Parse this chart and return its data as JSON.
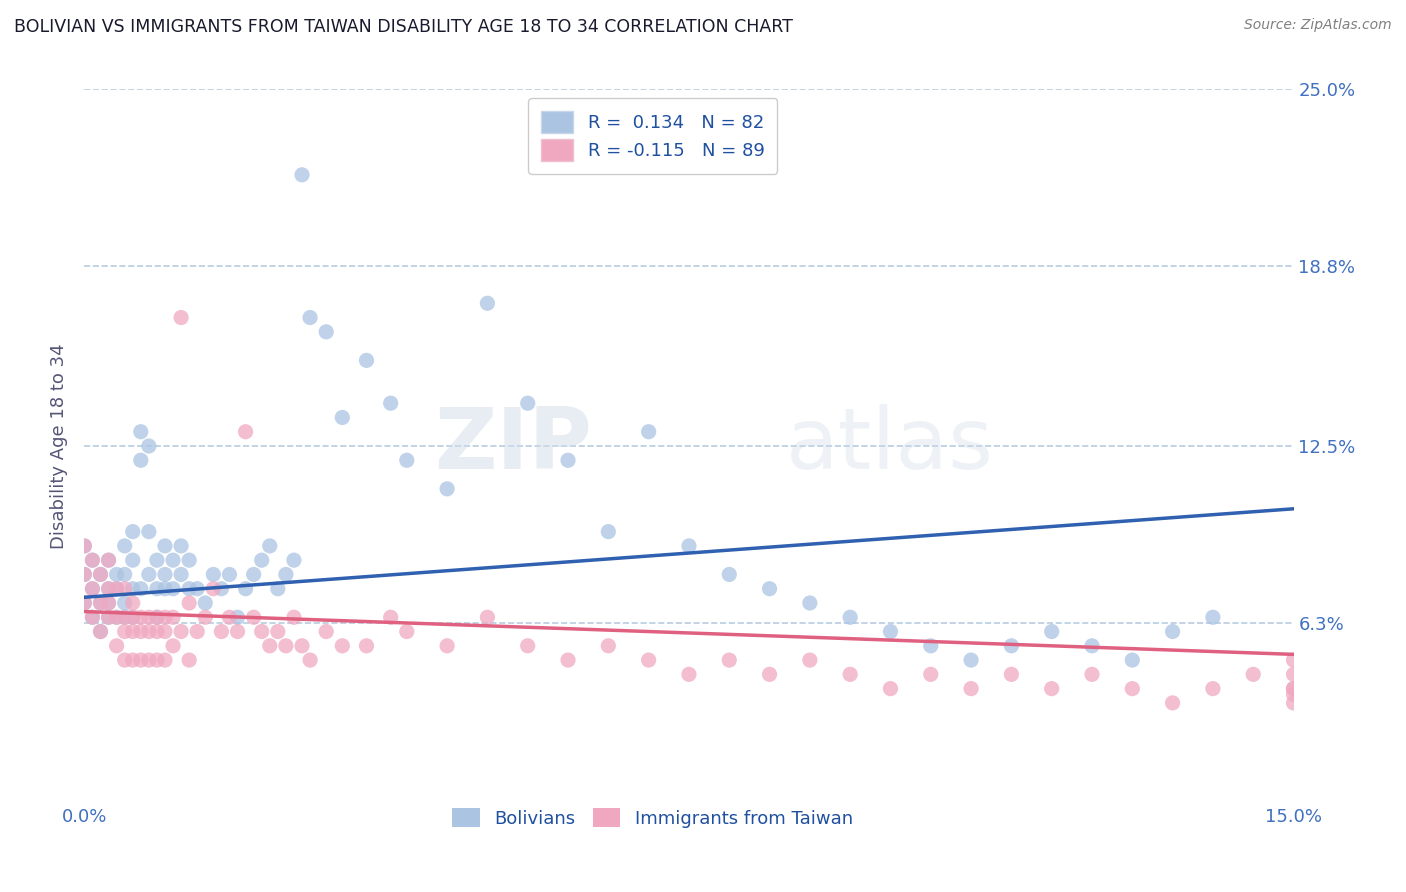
{
  "title": "BOLIVIAN VS IMMIGRANTS FROM TAIWAN DISABILITY AGE 18 TO 34 CORRELATION CHART",
  "source": "Source: ZipAtlas.com",
  "ylabel": "Disability Age 18 to 34",
  "xlim": [
    0.0,
    0.15
  ],
  "ylim": [
    0.0,
    0.25
  ],
  "ytick_vals": [
    0.063,
    0.125,
    0.188,
    0.25
  ],
  "ytick_labels": [
    "6.3%",
    "12.5%",
    "18.8%",
    "25.0%"
  ],
  "xtick_vals": [
    0.0,
    0.15
  ],
  "xtick_labels": [
    "0.0%",
    "15.0%"
  ],
  "color_blue": "#aac4e2",
  "color_pink": "#f0a8c0",
  "line_color_blue": "#3060b0",
  "line_color_pink": "#e06080",
  "watermark": "ZIPatlas",
  "title_color": "#1a1a2e",
  "axis_label_color": "#555577",
  "tick_label_color": "#4070c0",
  "legend_label_color": "#2050a0",
  "background_color": "#ffffff",
  "grid_color": "#b8cce0",
  "R1": 0.134,
  "N1": 82,
  "R2": -0.115,
  "N2": 89,
  "blue_line_start_y": 0.072,
  "blue_line_end_y": 0.103,
  "pink_line_start_y": 0.067,
  "pink_line_end_y": 0.052,
  "bolivians_x": [
    0.0,
    0.0,
    0.0,
    0.001,
    0.001,
    0.001,
    0.002,
    0.002,
    0.002,
    0.003,
    0.003,
    0.003,
    0.003,
    0.004,
    0.004,
    0.004,
    0.005,
    0.005,
    0.005,
    0.005,
    0.006,
    0.006,
    0.006,
    0.006,
    0.007,
    0.007,
    0.007,
    0.008,
    0.008,
    0.008,
    0.009,
    0.009,
    0.009,
    0.01,
    0.01,
    0.01,
    0.011,
    0.011,
    0.012,
    0.012,
    0.013,
    0.013,
    0.014,
    0.015,
    0.016,
    0.017,
    0.018,
    0.019,
    0.02,
    0.021,
    0.022,
    0.023,
    0.024,
    0.025,
    0.026,
    0.027,
    0.028,
    0.03,
    0.032,
    0.035,
    0.038,
    0.04,
    0.045,
    0.05,
    0.055,
    0.06,
    0.065,
    0.07,
    0.075,
    0.08,
    0.085,
    0.09,
    0.095,
    0.1,
    0.105,
    0.11,
    0.115,
    0.12,
    0.125,
    0.13,
    0.135,
    0.14
  ],
  "bolivians_y": [
    0.07,
    0.08,
    0.09,
    0.065,
    0.075,
    0.085,
    0.07,
    0.08,
    0.06,
    0.065,
    0.075,
    0.085,
    0.07,
    0.065,
    0.075,
    0.08,
    0.07,
    0.08,
    0.09,
    0.065,
    0.075,
    0.085,
    0.095,
    0.065,
    0.12,
    0.13,
    0.075,
    0.08,
    0.125,
    0.095,
    0.075,
    0.085,
    0.065,
    0.09,
    0.08,
    0.075,
    0.085,
    0.075,
    0.09,
    0.08,
    0.085,
    0.075,
    0.075,
    0.07,
    0.08,
    0.075,
    0.08,
    0.065,
    0.075,
    0.08,
    0.085,
    0.09,
    0.075,
    0.08,
    0.085,
    0.22,
    0.17,
    0.165,
    0.135,
    0.155,
    0.14,
    0.12,
    0.11,
    0.175,
    0.14,
    0.12,
    0.095,
    0.13,
    0.09,
    0.08,
    0.075,
    0.07,
    0.065,
    0.06,
    0.055,
    0.05,
    0.055,
    0.06,
    0.055,
    0.05,
    0.06,
    0.065
  ],
  "taiwan_x": [
    0.0,
    0.0,
    0.0,
    0.001,
    0.001,
    0.001,
    0.002,
    0.002,
    0.002,
    0.003,
    0.003,
    0.003,
    0.003,
    0.004,
    0.004,
    0.004,
    0.005,
    0.005,
    0.005,
    0.005,
    0.006,
    0.006,
    0.006,
    0.006,
    0.007,
    0.007,
    0.007,
    0.008,
    0.008,
    0.008,
    0.009,
    0.009,
    0.009,
    0.01,
    0.01,
    0.01,
    0.011,
    0.011,
    0.012,
    0.012,
    0.013,
    0.013,
    0.014,
    0.015,
    0.016,
    0.017,
    0.018,
    0.019,
    0.02,
    0.021,
    0.022,
    0.023,
    0.024,
    0.025,
    0.026,
    0.027,
    0.028,
    0.03,
    0.032,
    0.035,
    0.038,
    0.04,
    0.045,
    0.05,
    0.055,
    0.06,
    0.065,
    0.07,
    0.075,
    0.08,
    0.085,
    0.09,
    0.095,
    0.1,
    0.105,
    0.11,
    0.115,
    0.12,
    0.125,
    0.13,
    0.135,
    0.14,
    0.145,
    0.15,
    0.15,
    0.15,
    0.15,
    0.15,
    0.15
  ],
  "taiwan_y": [
    0.07,
    0.08,
    0.09,
    0.065,
    0.075,
    0.085,
    0.07,
    0.08,
    0.06,
    0.065,
    0.075,
    0.085,
    0.07,
    0.065,
    0.075,
    0.055,
    0.065,
    0.075,
    0.06,
    0.05,
    0.065,
    0.07,
    0.06,
    0.05,
    0.065,
    0.06,
    0.05,
    0.065,
    0.06,
    0.05,
    0.065,
    0.06,
    0.05,
    0.065,
    0.06,
    0.05,
    0.065,
    0.055,
    0.17,
    0.06,
    0.07,
    0.05,
    0.06,
    0.065,
    0.075,
    0.06,
    0.065,
    0.06,
    0.13,
    0.065,
    0.06,
    0.055,
    0.06,
    0.055,
    0.065,
    0.055,
    0.05,
    0.06,
    0.055,
    0.055,
    0.065,
    0.06,
    0.055,
    0.065,
    0.055,
    0.05,
    0.055,
    0.05,
    0.045,
    0.05,
    0.045,
    0.05,
    0.045,
    0.04,
    0.045,
    0.04,
    0.045,
    0.04,
    0.045,
    0.04,
    0.035,
    0.04,
    0.045,
    0.04,
    0.05,
    0.045,
    0.04,
    0.035,
    0.038
  ]
}
